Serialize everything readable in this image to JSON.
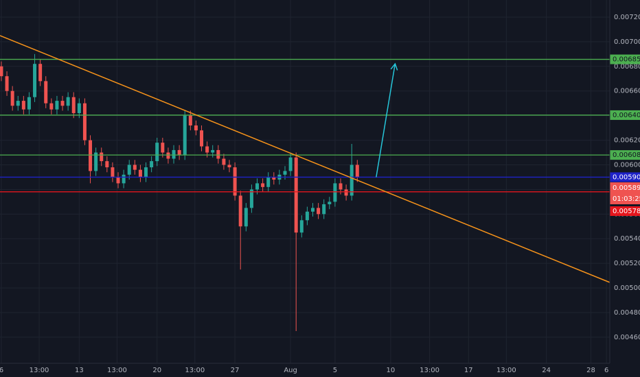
{
  "chart_data": {
    "type": "candlestick",
    "xlim": [
      -0.12,
      54.7
    ],
    "ylim": [
      0.004388,
      0.007339
    ],
    "xticks": [
      {
        "value": 0,
        "label": "6"
      },
      {
        "value": 3.4,
        "label": "13:00"
      },
      {
        "value": 7,
        "label": "13"
      },
      {
        "value": 10.4,
        "label": "13:00"
      },
      {
        "value": 14,
        "label": "20"
      },
      {
        "value": 17.4,
        "label": "13:00"
      },
      {
        "value": 21,
        "label": "27"
      },
      {
        "value": 26,
        "label": "Aug"
      },
      {
        "value": 30,
        "label": "5"
      },
      {
        "value": 35,
        "label": "10"
      },
      {
        "value": 38.5,
        "label": "13:00"
      },
      {
        "value": 42,
        "label": "17"
      },
      {
        "value": 45.4,
        "label": "13:00"
      },
      {
        "value": 49,
        "label": "24"
      },
      {
        "value": 53,
        "label": "28"
      },
      {
        "value": 54.4,
        "label": "6"
      }
    ],
    "yticks": [
      {
        "value": 0.0046,
        "label": "0.004600"
      },
      {
        "value": 0.0048,
        "label": "0.004800"
      },
      {
        "value": 0.005,
        "label": "0.005000"
      },
      {
        "value": 0.0052,
        "label": "0.005200"
      },
      {
        "value": 0.0054,
        "label": "0.005400"
      },
      {
        "value": 0.0056,
        "label": "0.005600"
      },
      {
        "value": 0.0058,
        "label": "0.005800"
      },
      {
        "value": 0.006,
        "label": "0.006000"
      },
      {
        "value": 0.0062,
        "label": "0.006200"
      },
      {
        "value": 0.0064,
        "label": "0.006400"
      },
      {
        "value": 0.0066,
        "label": "0.006600"
      },
      {
        "value": 0.0068,
        "label": "0.006800"
      },
      {
        "value": 0.007,
        "label": "0.007000"
      },
      {
        "value": 0.0072,
        "label": "0.007200"
      }
    ],
    "grid": true,
    "up_color": "#26a69a",
    "down_color": "#ef5350",
    "x": [
      0,
      0.5,
      1,
      1.5,
      2,
      2.5,
      3,
      3.5,
      4,
      4.5,
      5,
      5.5,
      6,
      6.5,
      7,
      7.5,
      8,
      8.5,
      9,
      9.5,
      10,
      10.5,
      11,
      11.5,
      12,
      12.5,
      13,
      13.5,
      14,
      14.5,
      15,
      15.5,
      16,
      16.5,
      17,
      17.5,
      18,
      18.5,
      19,
      19.5,
      20,
      20.5,
      21,
      21.5,
      22,
      22.5,
      23,
      23.5,
      24,
      24.5,
      25,
      25.5,
      26,
      26.5,
      27,
      27.5,
      28,
      28.5,
      29,
      29.5,
      30,
      30.5,
      31,
      31.5,
      32
    ],
    "open": [
      0.0068,
      0.00672,
      0.0066,
      0.00648,
      0.00652,
      0.00645,
      0.00655,
      0.00682,
      0.00668,
      0.0065,
      0.00645,
      0.00652,
      0.00648,
      0.00655,
      0.00642,
      0.0065,
      0.0062,
      0.00595,
      0.0061,
      0.00603,
      0.00598,
      0.0059,
      0.00585,
      0.00592,
      0.006,
      0.00596,
      0.0059,
      0.00598,
      0.00603,
      0.00618,
      0.0061,
      0.00605,
      0.00612,
      0.00608,
      0.0064,
      0.00632,
      0.00628,
      0.00615,
      0.0061,
      0.00612,
      0.00605,
      0.006,
      0.00598,
      0.00575,
      0.0055,
      0.00565,
      0.0058,
      0.00585,
      0.00582,
      0.0059,
      0.00588,
      0.00592,
      0.00595,
      0.00606,
      0.00545,
      0.00555,
      0.00562,
      0.00565,
      0.0056,
      0.00568,
      0.0057,
      0.00585,
      0.0058,
      0.00575,
      0.006
    ],
    "high": [
      0.00684,
      0.00676,
      0.00664,
      0.00656,
      0.00656,
      0.00659,
      0.0069,
      0.00686,
      0.00672,
      0.00654,
      0.00656,
      0.00656,
      0.00659,
      0.00659,
      0.00654,
      0.00654,
      0.00624,
      0.00614,
      0.00614,
      0.00607,
      0.00602,
      0.00594,
      0.00596,
      0.00604,
      0.00604,
      0.006,
      0.00602,
      0.00607,
      0.00622,
      0.00622,
      0.00614,
      0.00616,
      0.00616,
      0.00644,
      0.00644,
      0.00636,
      0.00632,
      0.00619,
      0.00616,
      0.00616,
      0.00609,
      0.00604,
      0.00602,
      0.00579,
      0.00569,
      0.00584,
      0.00589,
      0.00589,
      0.00594,
      0.00594,
      0.00596,
      0.00599,
      0.0061,
      0.0061,
      0.00559,
      0.00566,
      0.00569,
      0.00569,
      0.00572,
      0.00574,
      0.00589,
      0.00589,
      0.00584,
      0.00617,
      0.00604
    ],
    "low": [
      0.00668,
      0.00656,
      0.00644,
      0.00644,
      0.00641,
      0.00641,
      0.00651,
      0.00664,
      0.00646,
      0.00641,
      0.00641,
      0.00644,
      0.00644,
      0.00638,
      0.00638,
      0.00616,
      0.00585,
      0.00591,
      0.00599,
      0.00594,
      0.00586,
      0.00581,
      0.00581,
      0.00588,
      0.00592,
      0.00586,
      0.00586,
      0.00594,
      0.00599,
      0.00606,
      0.00601,
      0.00601,
      0.00604,
      0.00604,
      0.00628,
      0.00624,
      0.00611,
      0.00606,
      0.00606,
      0.00601,
      0.00596,
      0.00594,
      0.00571,
      0.00515,
      0.00546,
      0.00561,
      0.00576,
      0.00578,
      0.00578,
      0.00584,
      0.00584,
      0.00588,
      0.00591,
      0.00465,
      0.00541,
      0.00551,
      0.00558,
      0.00556,
      0.00556,
      0.00564,
      0.00566,
      0.00576,
      0.00571,
      0.00571,
      0.00586
    ],
    "close": [
      0.00672,
      0.0066,
      0.00648,
      0.00652,
      0.00645,
      0.00655,
      0.00682,
      0.00668,
      0.0065,
      0.00645,
      0.00652,
      0.00648,
      0.00655,
      0.00642,
      0.0065,
      0.0062,
      0.00595,
      0.0061,
      0.00603,
      0.00598,
      0.0059,
      0.00585,
      0.00592,
      0.006,
      0.00596,
      0.0059,
      0.00598,
      0.00603,
      0.00618,
      0.0061,
      0.00605,
      0.00612,
      0.00608,
      0.0064,
      0.00632,
      0.00628,
      0.00615,
      0.0061,
      0.00612,
      0.00605,
      0.006,
      0.00598,
      0.00575,
      0.0055,
      0.00565,
      0.0058,
      0.00585,
      0.00582,
      0.0059,
      0.00588,
      0.00592,
      0.00595,
      0.00606,
      0.00545,
      0.00555,
      0.00562,
      0.00565,
      0.0056,
      0.00568,
      0.0057,
      0.00585,
      0.0058,
      0.00575,
      0.006,
      0.0059
    ],
    "levels": [
      {
        "value": 0.006857,
        "color": "#4caf50"
      },
      {
        "value": 0.006404,
        "color": "#4caf50"
      },
      {
        "value": 0.00608,
        "label": "0.006080",
        "color": "#4caf50"
      },
      {
        "value": 0.0059,
        "label": "0.005900",
        "color": "#1e22c8"
      },
      {
        "value": 0.005781,
        "color": "#e5161d"
      }
    ],
    "last_price": {
      "value": 0.005899,
      "countdown": "01:03:25",
      "color": "#ef5350"
    },
    "trendline": {
      "x": [
        -0.12,
        54.7
      ],
      "y": [
        0.00705,
        0.005045
      ],
      "color": "#f7931a"
    },
    "arrow": {
      "x": [
        33.7,
        35.4
      ],
      "y": [
        0.0059,
        0.006821
      ],
      "color": "#26c6da"
    }
  }
}
